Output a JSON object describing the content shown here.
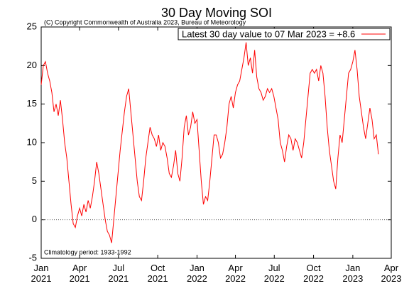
{
  "chart_data": {
    "type": "line",
    "title": "30 Day Moving SOI",
    "subtitle": "(C) Copyright Commonwealth of Australia 2023, Bureau of Meteorology",
    "annotation": "Climatology period: 1933-1992",
    "legend": "top-right",
    "reference_line": 0,
    "xlim": [
      0,
      820
    ],
    "xticks": [
      {
        "value": 0,
        "label": "Jan\n2021"
      },
      {
        "value": 90,
        "label": "Apr\n2021"
      },
      {
        "value": 181,
        "label": "Jul\n2021"
      },
      {
        "value": 273,
        "label": "Oct\n2021"
      },
      {
        "value": 365,
        "label": "Jan\n2022"
      },
      {
        "value": 455,
        "label": "Apr\n2022"
      },
      {
        "value": 546,
        "label": "Jul\n2022"
      },
      {
        "value": 638,
        "label": "Oct\n2022"
      },
      {
        "value": 730,
        "label": "Jan\n2023"
      },
      {
        "value": 820,
        "label": "Apr\n2023"
      }
    ],
    "ylim": [
      -5,
      25
    ],
    "yticks": [
      -5,
      0,
      5,
      10,
      15,
      20,
      25
    ],
    "x": [
      0,
      5,
      10,
      15,
      20,
      25,
      30,
      35,
      40,
      45,
      50,
      55,
      60,
      65,
      70,
      75,
      80,
      85,
      90,
      95,
      100,
      105,
      110,
      115,
      120,
      125,
      130,
      135,
      140,
      145,
      150,
      155,
      160,
      165,
      170,
      175,
      180,
      185,
      190,
      195,
      200,
      205,
      210,
      215,
      220,
      225,
      230,
      235,
      240,
      245,
      250,
      255,
      260,
      265,
      270,
      275,
      280,
      285,
      290,
      295,
      300,
      305,
      310,
      315,
      320,
      325,
      330,
      335,
      340,
      345,
      350,
      355,
      360,
      365,
      370,
      375,
      380,
      385,
      390,
      395,
      400,
      405,
      410,
      415,
      420,
      425,
      430,
      435,
      440,
      445,
      450,
      455,
      460,
      465,
      470,
      475,
      480,
      485,
      490,
      495,
      500,
      505,
      510,
      515,
      520,
      525,
      530,
      535,
      540,
      545,
      550,
      555,
      560,
      565,
      570,
      575,
      580,
      585,
      590,
      595,
      600,
      605,
      610,
      615,
      620,
      625,
      630,
      635,
      640,
      645,
      650,
      655,
      660,
      665,
      670,
      675,
      680,
      685,
      690,
      695,
      700,
      705,
      710,
      715,
      720,
      725,
      730,
      735,
      740,
      745,
      750,
      755,
      760,
      765,
      770,
      775,
      780,
      785,
      790
    ],
    "series": [
      {
        "name": "Latest 30 day value to 07 Mar 2023 = +8.6",
        "color": "#ff0000",
        "values": [
          17.5,
          20,
          20.5,
          19,
          18,
          16.5,
          14,
          15,
          13.5,
          15.5,
          13,
          10,
          8,
          5,
          2,
          -0.5,
          -1,
          0.5,
          1.5,
          0.5,
          2,
          1,
          2.5,
          1.5,
          3,
          5,
          7.5,
          6,
          4,
          2,
          0,
          -1.5,
          -2,
          -3,
          0,
          3,
          6,
          9,
          11.5,
          14,
          16,
          17,
          14,
          11,
          8,
          5,
          3,
          2.5,
          5,
          8,
          10,
          12,
          11,
          10.5,
          9.5,
          11,
          9,
          10,
          9.5,
          8,
          6,
          5.5,
          7,
          9,
          6,
          5,
          8,
          12,
          13.5,
          11,
          12,
          14,
          12.5,
          13,
          9,
          5,
          2,
          3,
          2.5,
          5,
          8,
          11,
          11,
          10,
          8,
          8.5,
          10,
          12,
          15,
          16,
          14.5,
          16.5,
          17.5,
          18,
          19.5,
          21,
          23,
          20,
          21,
          19,
          22,
          18.5,
          17,
          16.5,
          15.5,
          16,
          17,
          16.5,
          17,
          16,
          14.5,
          13,
          10,
          9,
          7.5,
          9.5,
          11,
          10.5,
          9,
          10.5,
          10,
          9,
          8,
          10,
          13,
          16,
          19,
          19.5,
          19,
          19.5,
          18,
          20,
          19,
          16,
          12,
          9,
          7,
          5,
          4,
          8,
          11,
          10,
          13,
          16,
          19,
          19.5,
          20.5,
          22,
          19.5,
          16,
          14,
          12,
          10.5,
          12.5,
          14.5,
          13,
          10.5,
          11,
          8.5
        ]
      }
    ]
  }
}
